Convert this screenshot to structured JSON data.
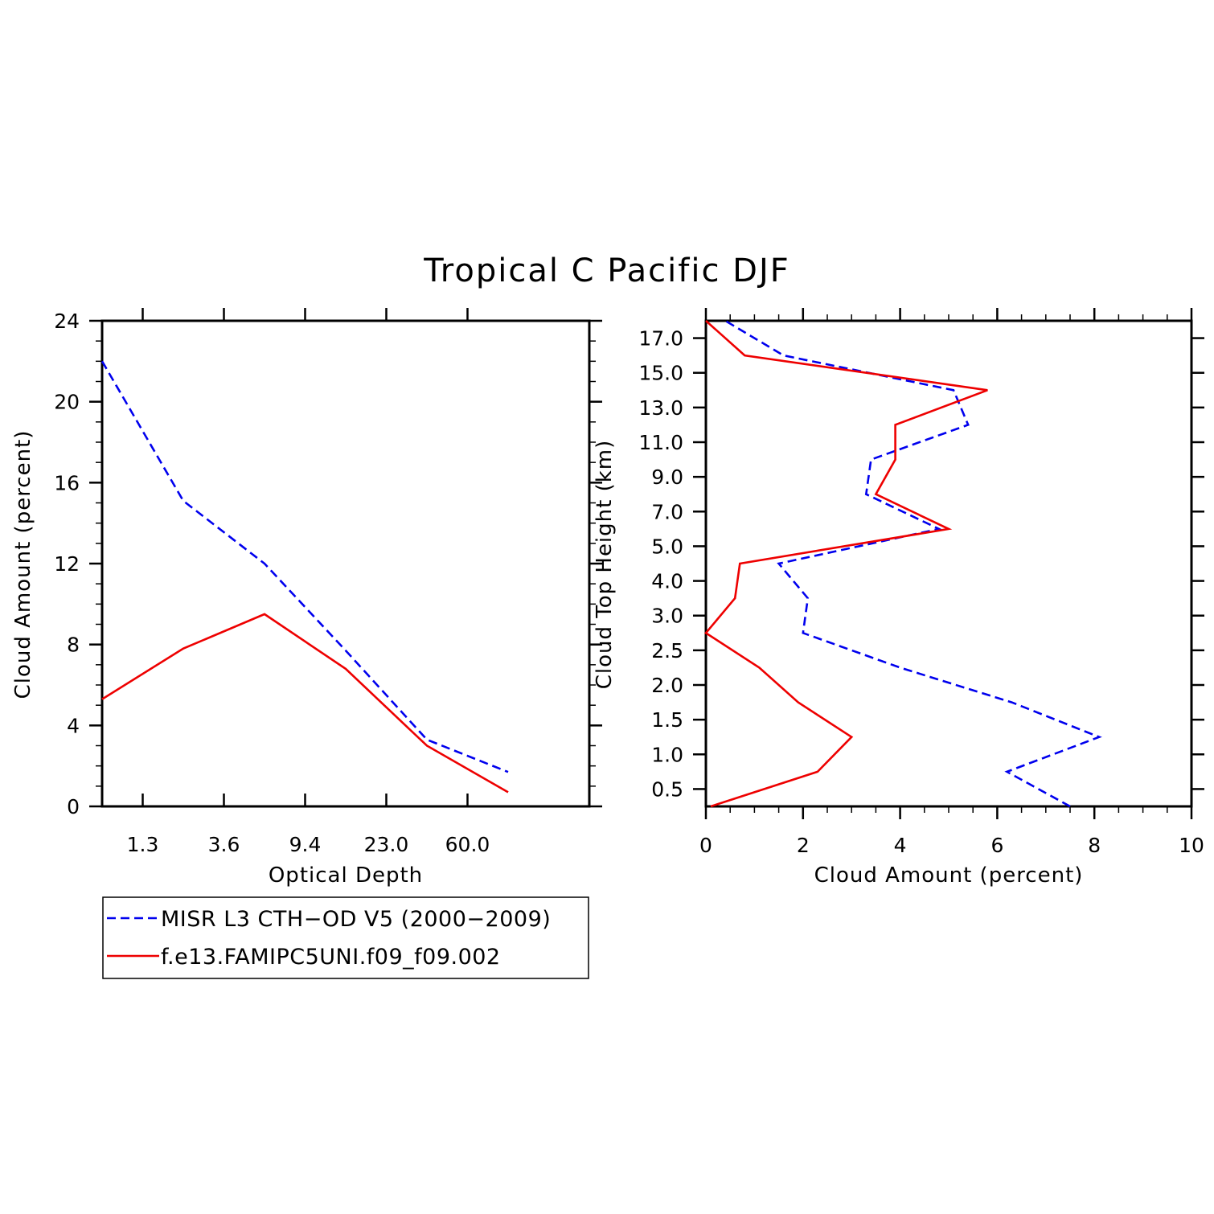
{
  "title": "Tropical C Pacific DJF",
  "colors": {
    "obs": "#0000ee",
    "model": "#ee0000",
    "axis": "#000000"
  },
  "legend": {
    "placement": "bottom-left",
    "items": [
      {
        "label": "MISR L3 CTH−OD V5 (2000−2009)",
        "color": "#0000ee",
        "style": "dashed"
      },
      {
        "label": "f.e13.FAMIPC5UNI.f09_f09.002",
        "color": "#ee0000",
        "style": "solid"
      }
    ]
  },
  "chart_data": [
    {
      "type": "line",
      "xlabel": "Optical Depth",
      "ylabel": "Cloud Amount (percent)",
      "x_ticklabels": [
        "1.3",
        "3.6",
        "9.4",
        "23.0",
        "60.0"
      ],
      "y_ticks": [
        0,
        4,
        8,
        12,
        16,
        20,
        24
      ],
      "ylim": [
        0,
        24
      ],
      "x_bins": 6,
      "series": [
        {
          "name": "MISR L3 CTH−OD V5 (2000−2009)",
          "style": "dashed",
          "color": "#0000ee",
          "values": [
            22.0,
            15.1,
            12.0,
            7.7,
            3.3,
            1.7
          ]
        },
        {
          "name": "f.e13.FAMIPC5UNI.f09_f09.002",
          "style": "solid",
          "color": "#ee0000",
          "values": [
            5.3,
            7.8,
            9.5,
            6.8,
            3.0,
            0.7
          ]
        }
      ]
    },
    {
      "type": "line",
      "xlabel": "Cloud Amount (percent)",
      "ylabel": "Cloud Top Height (km)",
      "x_ticks": [
        0,
        2,
        4,
        6,
        8,
        10
      ],
      "xlim": [
        0,
        10
      ],
      "y_ticklabels": [
        "0.5",
        "1.0",
        "1.5",
        "2.0",
        "2.5",
        "3.0",
        "4.0",
        "5.0",
        "7.0",
        "9.0",
        "11.0",
        "13.0",
        "15.0",
        "17.0"
      ],
      "series": [
        {
          "name": "MISR L3 CTH−OD V5 (2000−2009)",
          "style": "dashed",
          "color": "#0000ee",
          "points": [
            [
              7.5,
              0.0
            ],
            [
              6.2,
              1.0
            ],
            [
              8.1,
              2.0
            ],
            [
              6.3,
              3.0
            ],
            [
              4.0,
              4.0
            ],
            [
              2.0,
              5.0
            ],
            [
              2.1,
              6.0
            ],
            [
              1.5,
              7.0
            ],
            [
              4.8,
              8.0
            ],
            [
              3.3,
              9.0
            ],
            [
              3.4,
              10.0
            ],
            [
              5.4,
              11.0
            ],
            [
              5.1,
              12.0
            ],
            [
              1.6,
              13.0
            ],
            [
              0.4,
              14.0
            ]
          ]
        },
        {
          "name": "f.e13.FAMIPC5UNI.f09_f09.002",
          "style": "solid",
          "color": "#ee0000",
          "points": [
            [
              0.1,
              0.0
            ],
            [
              2.3,
              1.0
            ],
            [
              3.0,
              2.0
            ],
            [
              1.9,
              3.0
            ],
            [
              1.1,
              4.0
            ],
            [
              0.0,
              5.0
            ],
            [
              0.6,
              6.0
            ],
            [
              0.7,
              7.0
            ],
            [
              5.0,
              8.0
            ],
            [
              3.5,
              9.0
            ],
            [
              3.9,
              10.0
            ],
            [
              3.9,
              11.0
            ],
            [
              5.8,
              12.0
            ],
            [
              0.8,
              13.0
            ],
            [
              0.0,
              14.0
            ]
          ]
        }
      ]
    }
  ]
}
